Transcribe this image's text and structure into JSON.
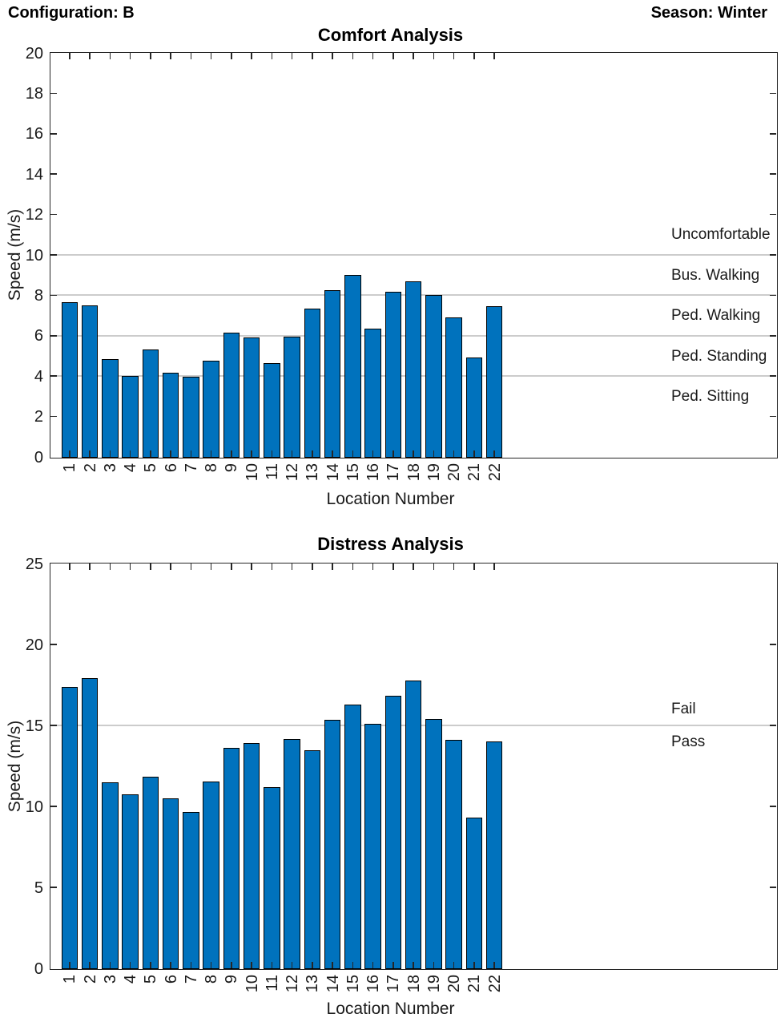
{
  "header": {
    "configuration": "Configuration: B",
    "season": "Season: Winter"
  },
  "chart_data": [
    {
      "type": "bar",
      "title": "Comfort Analysis",
      "xlabel": "Location Number",
      "ylabel": "Speed (m/s)",
      "categories": [
        1,
        2,
        3,
        4,
        5,
        6,
        7,
        8,
        9,
        10,
        11,
        12,
        13,
        14,
        15,
        16,
        17,
        18,
        19,
        20,
        21,
        22
      ],
      "values": [
        7.7,
        7.55,
        4.9,
        4.05,
        5.35,
        4.2,
        4.0,
        4.8,
        6.2,
        5.95,
        4.7,
        6.0,
        7.4,
        8.3,
        9.05,
        6.4,
        8.2,
        8.75,
        8.05,
        6.95,
        4.95,
        7.5
      ],
      "ylim": [
        0,
        20
      ],
      "ytick_step": 2,
      "xlim": [
        0,
        36
      ],
      "grid": false,
      "legend": "none",
      "threshold_lines": [
        10,
        8,
        6,
        4
      ],
      "region_labels": [
        {
          "text": "Uncomfortable",
          "y": 11
        },
        {
          "text": "Bus. Walking",
          "y": 9
        },
        {
          "text": "Ped. Walking",
          "y": 7
        },
        {
          "text": "Ped. Standing",
          "y": 5
        },
        {
          "text": "Ped. Sitting",
          "y": 3
        }
      ],
      "bar_color": "#0072BD",
      "bar_edge_color": "#000000",
      "threshold_line_color": "#CCCCCC"
    },
    {
      "type": "bar",
      "title": "Distress Analysis",
      "xlabel": "Location Number",
      "ylabel": "Speed (m/s)",
      "categories": [
        1,
        2,
        3,
        4,
        5,
        6,
        7,
        8,
        9,
        10,
        11,
        12,
        13,
        14,
        15,
        16,
        17,
        18,
        19,
        20,
        21,
        22
      ],
      "values": [
        17.45,
        17.95,
        11.55,
        10.8,
        11.9,
        10.55,
        9.7,
        11.6,
        13.65,
        13.95,
        11.25,
        14.2,
        13.5,
        15.4,
        16.35,
        15.15,
        16.9,
        17.8,
        15.45,
        14.15,
        9.35,
        14.05
      ],
      "ylim": [
        0,
        25
      ],
      "ytick_step": 5,
      "xlim": [
        0,
        36
      ],
      "grid": false,
      "legend": "none",
      "threshold_lines": [
        15
      ],
      "region_labels": [
        {
          "text": "Fail",
          "y": 16
        },
        {
          "text": "Pass",
          "y": 14
        }
      ],
      "bar_color": "#0072BD",
      "bar_edge_color": "#000000",
      "threshold_line_color": "#CCCCCC"
    }
  ]
}
